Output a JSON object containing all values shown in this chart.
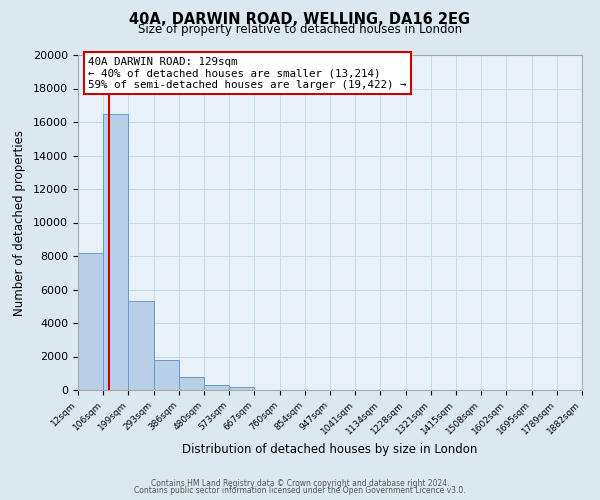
{
  "title": "40A, DARWIN ROAD, WELLING, DA16 2EG",
  "subtitle": "Size of property relative to detached houses in London",
  "xlabel": "Distribution of detached houses by size in London",
  "ylabel": "Number of detached properties",
  "bin_labels": [
    "12sqm",
    "106sqm",
    "199sqm",
    "293sqm",
    "386sqm",
    "480sqm",
    "573sqm",
    "667sqm",
    "760sqm",
    "854sqm",
    "947sqm",
    "1041sqm",
    "1134sqm",
    "1228sqm",
    "1321sqm",
    "1415sqm",
    "1508sqm",
    "1602sqm",
    "1695sqm",
    "1789sqm",
    "1882sqm"
  ],
  "bar_values": [
    8200,
    16500,
    5300,
    1800,
    800,
    300,
    200,
    0,
    0,
    0,
    0,
    0,
    0,
    0,
    0,
    0,
    0,
    0,
    0,
    0
  ],
  "bar_color": "#b8cfe8",
  "bar_edge_color": "#6699cc",
  "vline_color": "#cc0000",
  "ylim": [
    0,
    20000
  ],
  "yticks": [
    0,
    2000,
    4000,
    6000,
    8000,
    10000,
    12000,
    14000,
    16000,
    18000,
    20000
  ],
  "annotation_title": "40A DARWIN ROAD: 129sqm",
  "annotation_line1": "← 40% of detached houses are smaller (13,214)",
  "annotation_line2": "59% of semi-detached houses are larger (19,422) →",
  "annotation_box_color": "#ffffff",
  "annotation_box_edge": "#cc0000",
  "footer_line1": "Contains HM Land Registry data © Crown copyright and database right 2024.",
  "footer_line2": "Contains public sector information licensed under the Open Government Licence v3.0.",
  "bg_color": "#dce8f0",
  "plot_bg_color": "#e8f0f8",
  "grid_color": "#c8d8e8",
  "vline_x_data": 1.23
}
